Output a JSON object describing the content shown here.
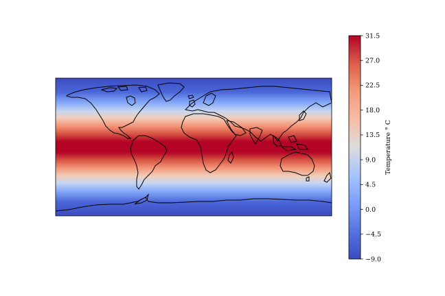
{
  "chart_data": {
    "type": "heatmap",
    "description_kind": "map",
    "colormap": "coolwarm",
    "colorbar": {
      "label": "Temperature $^\\circ C$",
      "label_text": "Temperature ° C",
      "range": [
        -9.0,
        31.5
      ],
      "ticks": [
        "31.5",
        "27.0",
        "22.5",
        "18.0",
        "13.5",
        "9.0",
        "4.5",
        "0.0",
        "−4.5",
        "−9.0"
      ],
      "tick_values": [
        31.5,
        27.0,
        22.5,
        18.0,
        13.5,
        9.0,
        4.5,
        0.0,
        -4.5,
        -9.0
      ]
    },
    "field": {
      "latitude_range": [
        -90,
        90
      ],
      "longitude_range": [
        -180,
        180
      ],
      "profile": "zonal; warmest (~31.5) at equator, coldest (~-9) at poles"
    },
    "coastlines": true,
    "grid": false
  }
}
